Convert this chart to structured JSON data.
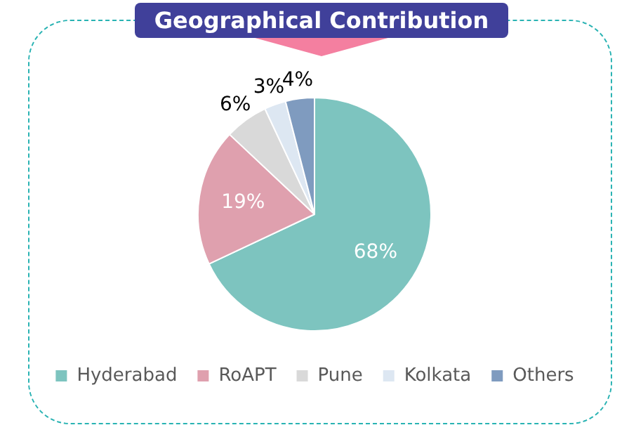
{
  "chart_data": {
    "type": "pie",
    "title": "Geographical Contribution",
    "categories": [
      "Hyderabad",
      "RoAPT",
      "Pune",
      "Kolkata",
      "Others"
    ],
    "values": [
      68,
      19,
      6,
      3,
      4
    ],
    "colors": [
      "#7dc4bf",
      "#dfa0ae",
      "#d9d9d9",
      "#dde7f2",
      "#7f9bbf"
    ],
    "value_labels": [
      "68%",
      "19%",
      "6%",
      "3%",
      "4%"
    ],
    "legend": "bottom"
  }
}
